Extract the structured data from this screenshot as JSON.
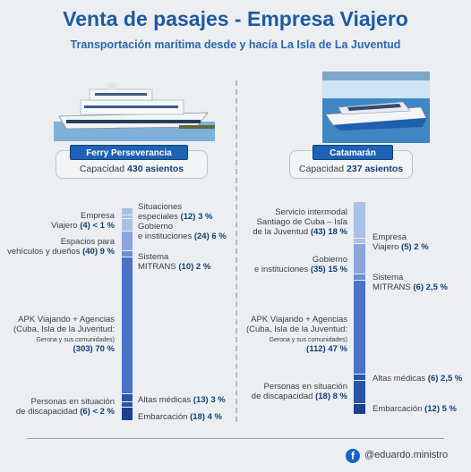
{
  "header": {
    "title": "Venta de pasajes - Empresa Viajero",
    "subtitle": "Transportación marítima desde y hacía La Isla de La Juventud"
  },
  "ferry": {
    "name": "Ferry Perseverancia",
    "capacity_label": "Capacidad",
    "capacity_value": "430 asientos",
    "labels": {
      "empresa_viajero": [
        "Empresa",
        "Viajero",
        "(4) < 1 %"
      ],
      "espacios": [
        "Espacios para",
        "vehículos y dueños",
        "(40) 9 %"
      ],
      "apk": [
        "APK Viajando + Agencias",
        "(Cuba, Isla de la Juventud:",
        "Gerona y sus comunidades)",
        "(303) 70 %"
      ],
      "discapacidad": [
        "Personas en situación",
        "de discapacidad",
        "(6) < 2 %"
      ],
      "situaciones": [
        "Situaciones",
        "especiales",
        "(12) 3 %"
      ],
      "gobierno": [
        "Gobierno",
        "e instituciones",
        "(24) 6 %"
      ],
      "mitrans": [
        "Sistema",
        "MITRANS",
        "(10) 2 %"
      ],
      "altas": [
        "Altas médicas",
        "(13) 3 %"
      ],
      "embarcacion": [
        "Embarcación",
        "(18) 4 %"
      ]
    }
  },
  "catamaran": {
    "name": "Catamarán",
    "capacity_label": "Capacidad",
    "capacity_value": "237 asientos",
    "labels": {
      "intermodal": [
        "Servicio intermodal",
        "Santiago de Cuba – Isla",
        "de la Juventud",
        "(43) 18 %"
      ],
      "gobierno": [
        "Gobierno",
        "e instituciones",
        "(35) 15 %"
      ],
      "apk": [
        "APK Viajando + Agencias",
        "(Cuba, Isla de la Juventud:",
        "Gerona y sus comunidades)",
        "(112) 47 %"
      ],
      "discapacidad": [
        "Personas en situación",
        "de discapacidad",
        "(18) 8 %"
      ],
      "empresa_viajero": [
        "Empresa",
        "Viajero",
        "(5) 2 %"
      ],
      "mitrans": [
        "Sistema",
        "MITRANS",
        "(6) 2,5 %"
      ],
      "altas": [
        "Altas médicas",
        "(6) 2,5 %"
      ],
      "embarcacion": [
        "Embarcación",
        "(12) 5 %"
      ]
    }
  },
  "footer": {
    "social_icon": "f",
    "handle": "@eduardo.ministro"
  },
  "colors": {
    "accent": "#1d5aa3",
    "light": "#aac0e4",
    "mid": "#6a8fd1",
    "main": "#4a72c8",
    "dark": "#1d3f8f"
  }
}
